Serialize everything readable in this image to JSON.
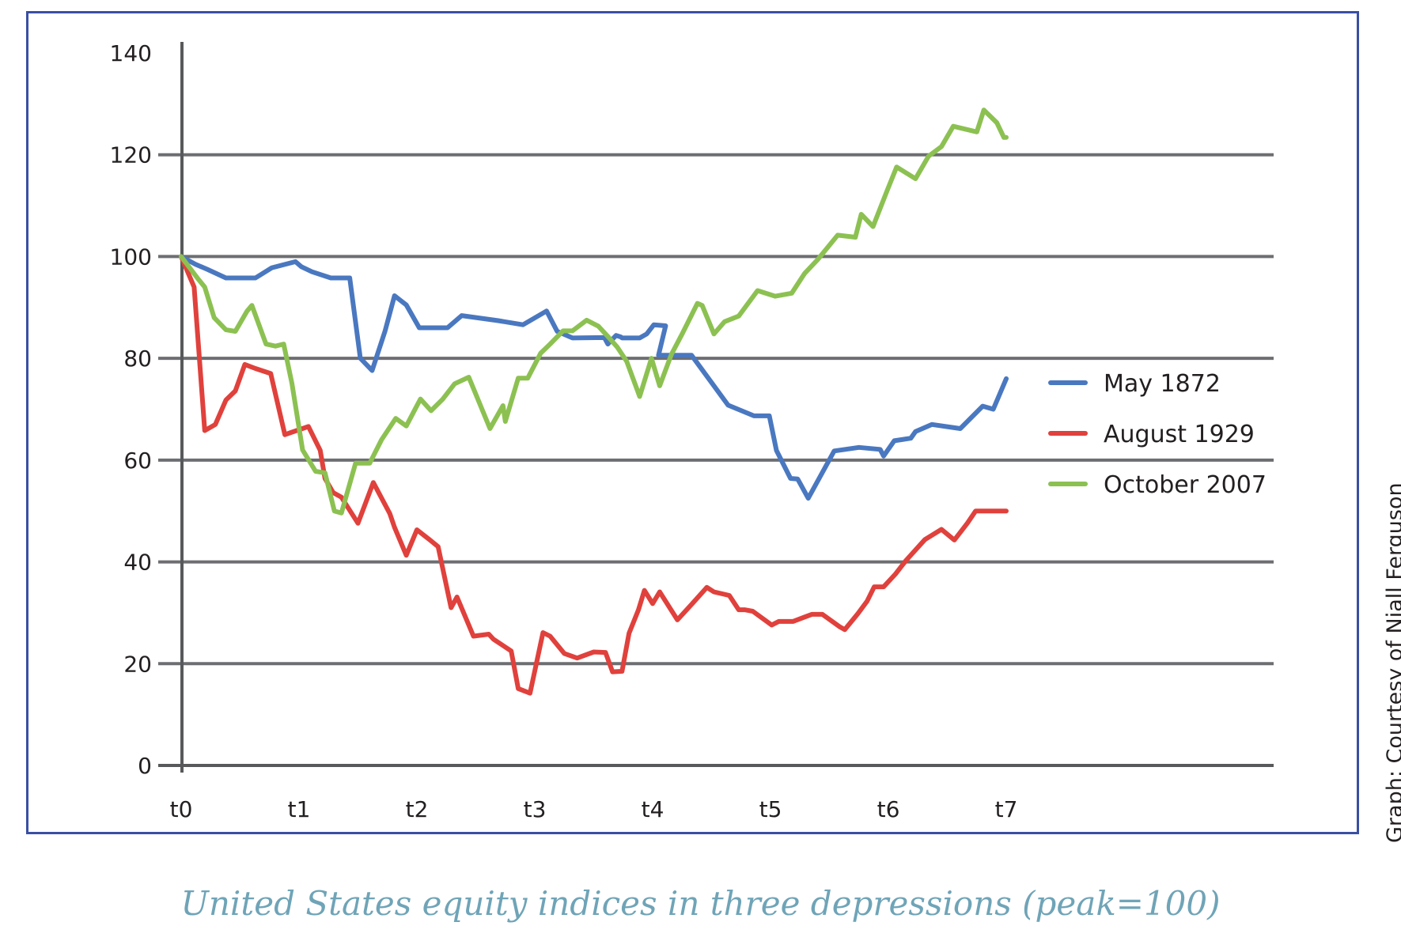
{
  "caption": "United States equity indices in three depressions (peak=100)",
  "credit": "Graph: Courtesy of Niall Ferguson",
  "chart_data": {
    "type": "line",
    "title": "",
    "xlabel": "",
    "ylabel": "",
    "ylim": [
      0,
      140
    ],
    "yticks": [
      "0",
      "20",
      "40",
      "60",
      "80",
      "100",
      "120",
      "140"
    ],
    "xticks": [
      "t0",
      "t1",
      "t2",
      "t3",
      "t4",
      "t5",
      "t6",
      "t7"
    ],
    "xlim": [
      0,
      7
    ],
    "grid": true,
    "legend_position": "right",
    "series": [
      {
        "name": "May 1872",
        "color": "#4a78c0",
        "x": [
          0,
          0.12,
          0.22,
          0.38,
          0.5,
          0.63,
          0.77,
          0.97,
          1.02,
          1.11,
          1.27,
          1.43,
          1.52,
          1.62,
          1.73,
          1.81,
          1.91,
          2.02,
          2.26,
          2.38,
          2.69,
          2.9,
          3.1,
          3.19,
          3.32,
          3.59,
          3.62,
          3.69,
          3.73,
          3.74,
          3.89,
          3.95,
          4.01,
          4.11,
          4.05,
          4.33,
          4.64,
          4.86,
          4.99,
          5.05,
          5.17,
          5.23,
          5.32,
          5.54,
          5.75,
          5.93,
          5.96,
          6.05,
          6.19,
          6.23,
          6.37,
          6.61,
          6.8,
          6.89,
          7.0
        ],
        "values": [
          100,
          98.5,
          97.5,
          95.8,
          95.8,
          95.8,
          97.8,
          99,
          98,
          97,
          95.8,
          95.8,
          80,
          77.6,
          85.4,
          92.3,
          90.5,
          86,
          86,
          88.4,
          87.4,
          86.6,
          89.3,
          85.3,
          84,
          84.1,
          82.8,
          84.5,
          84.2,
          84,
          84,
          84.8,
          86.6,
          86.4,
          80.6,
          80.6,
          70.8,
          68.7,
          68.7,
          61.9,
          56.4,
          56.3,
          52.5,
          61.8,
          62.5,
          62.1,
          60.8,
          63.8,
          64.3,
          65.6,
          67,
          66.2,
          70.6,
          70,
          76
        ]
      },
      {
        "name": "August 1929",
        "color": "#e0413c",
        "x": [
          0,
          0.11,
          0.2,
          0.29,
          0.38,
          0.46,
          0.54,
          0.63,
          0.76,
          0.88,
          0.94,
          1.08,
          1.18,
          1.22,
          1.29,
          1.36,
          1.5,
          1.63,
          1.77,
          1.81,
          1.91,
          2.0,
          2.1,
          2.18,
          2.29,
          2.34,
          2.48,
          2.61,
          2.65,
          2.8,
          2.86,
          2.96,
          3.07,
          3.13,
          3.25,
          3.36,
          3.5,
          3.6,
          3.66,
          3.74,
          3.8,
          3.88,
          3.93,
          4.0,
          4.06,
          4.21,
          4.34,
          4.46,
          4.52,
          4.65,
          4.73,
          4.78,
          4.85,
          5.01,
          5.07,
          5.12,
          5.19,
          5.35,
          5.44,
          5.59,
          5.63,
          5.74,
          5.82,
          5.88,
          5.96,
          6.06,
          6.15,
          6.31,
          6.45,
          6.56,
          6.67,
          6.74,
          6.86,
          6.93,
          6.94,
          7.0
        ],
        "values": [
          100,
          94,
          65.8,
          67,
          71.8,
          73.6,
          78.8,
          78,
          77,
          65,
          65.5,
          66.6,
          61.9,
          56.4,
          53.6,
          52.7,
          47.6,
          55.6,
          49.5,
          46.8,
          41.3,
          46.3,
          44.5,
          43,
          31,
          33.1,
          25.4,
          25.8,
          24.8,
          22.5,
          15.1,
          14.2,
          26.1,
          25.4,
          22,
          21.1,
          22.3,
          22.2,
          18.4,
          18.5,
          26,
          30.6,
          34.4,
          31.8,
          34.1,
          28.6,
          31.9,
          35,
          34.1,
          33.4,
          30.6,
          30.6,
          30.3,
          27.6,
          28.3,
          28.3,
          28.3,
          29.7,
          29.7,
          27.2,
          26.7,
          29.8,
          32.3,
          35.1,
          35.1,
          37.6,
          40.3,
          44.4,
          46.4,
          44.3,
          47.6,
          50,
          50,
          50,
          50,
          50
        ]
      },
      {
        "name": "October 2007",
        "color": "#8cc152",
        "x": [
          0,
          0.14,
          0.2,
          0.28,
          0.38,
          0.46,
          0.56,
          0.6,
          0.72,
          0.8,
          0.87,
          0.94,
          1.03,
          1.14,
          1.22,
          1.3,
          1.36,
          1.48,
          1.6,
          1.7,
          1.82,
          1.91,
          1.98,
          2.03,
          2.12,
          2.22,
          2.32,
          2.44,
          2.62,
          2.73,
          2.75,
          2.86,
          2.94,
          3.05,
          3.13,
          3.24,
          3.32,
          3.44,
          3.54,
          3.62,
          3.7,
          3.78,
          3.89,
          3.99,
          4.06,
          4.16,
          4.25,
          4.38,
          4.42,
          4.52,
          4.61,
          4.73,
          4.89,
          5.04,
          5.18,
          5.29,
          5.4,
          5.57,
          5.72,
          5.77,
          5.87,
          5.99,
          6.07,
          6.23,
          6.34,
          6.45,
          6.55,
          6.75,
          6.81,
          6.92,
          6.98,
          7.0
        ],
        "values": [
          100,
          95.7,
          94,
          88,
          85.6,
          85.3,
          89.3,
          90.4,
          82.8,
          82.4,
          82.8,
          75,
          62,
          57.8,
          57.5,
          50,
          49.6,
          59.4,
          59.4,
          64,
          68.2,
          66.7,
          69.8,
          72,
          69.7,
          72,
          75,
          76.3,
          66.2,
          70.7,
          67.6,
          76.1,
          76.1,
          81,
          82.8,
          85.4,
          85.4,
          87.5,
          86.3,
          84.3,
          82.2,
          79.4,
          72.5,
          80,
          74.6,
          80.8,
          84.8,
          90.8,
          90.4,
          84.8,
          87.2,
          88.3,
          93.3,
          92.2,
          92.8,
          96.7,
          99.4,
          104.2,
          103.8,
          108.3,
          105.9,
          113,
          117.6,
          115.3,
          119.7,
          121.6,
          125.6,
          124.5,
          128.8,
          126.3,
          123.4,
          123.4
        ]
      }
    ]
  }
}
